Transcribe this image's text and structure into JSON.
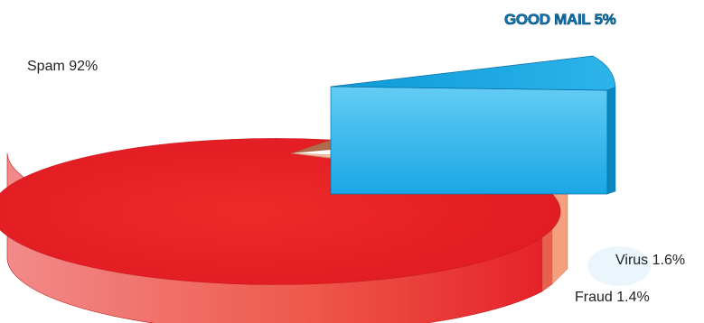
{
  "chart_data": {
    "type": "pie",
    "style": "3d-exploded",
    "title": "",
    "slices": [
      {
        "name": "Spam",
        "value": 92,
        "label": "Spam 92%",
        "color": "#ed1c24"
      },
      {
        "name": "GOOD MAIL",
        "value": 5,
        "label": "GOOD MAIL 5%",
        "color": "#29abe2",
        "exploded": true
      },
      {
        "name": "Virus",
        "value": 1.6,
        "label": "Virus 1.6%",
        "color": "#f4a07e"
      },
      {
        "name": "Fraud",
        "value": 1.4,
        "label": "Fraud 1.4%",
        "color": "#e9604f"
      }
    ]
  }
}
